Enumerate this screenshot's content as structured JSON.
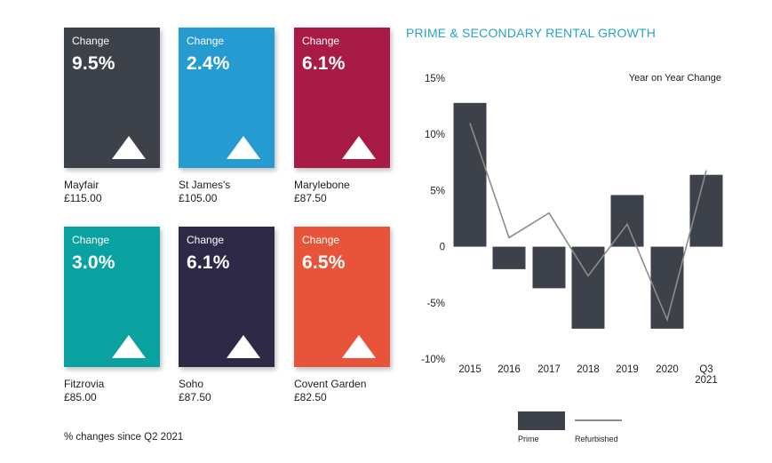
{
  "cards": [
    {
      "label": "Change",
      "value": "9.5%",
      "area": "Mayfair",
      "rent": "£115.00",
      "color": "#3d4149"
    },
    {
      "label": "Change",
      "value": "2.4%",
      "area": "St James's",
      "rent": "£105.00",
      "color": "#269bd2"
    },
    {
      "label": "Change",
      "value": "6.1%",
      "area": "Marylebone",
      "rent": "£87.50",
      "color": "#a81b47"
    },
    {
      "label": "Change",
      "value": "3.0%",
      "area": "Fitzrovia",
      "rent": "£85.00",
      "color": "#0aa1a1"
    },
    {
      "label": "Change",
      "value": "6.1%",
      "area": "Soho",
      "rent": "£87.50",
      "color": "#2d2947"
    },
    {
      "label": "Change",
      "value": "6.5%",
      "area": "Covent Garden",
      "rent": "£82.50",
      "color": "#e8543a"
    }
  ],
  "footnote": "% changes since Q2 2021",
  "chart_data": {
    "type": "bar",
    "title": "PRIME & SECONDARY RENTAL GROWTH",
    "subtitle": "Year on Year Change",
    "categories": [
      "2015",
      "2016",
      "2017",
      "2018",
      "2019",
      "2020",
      "Q3 2021"
    ],
    "series": [
      {
        "name": "Prime",
        "type": "bar",
        "color": "#3d4149",
        "values": [
          12.8,
          -2.0,
          -3.7,
          -7.3,
          4.6,
          -7.3,
          6.4
        ]
      },
      {
        "name": "Refurbished",
        "type": "line",
        "color": "#8c8c8c",
        "values": [
          11.0,
          0.8,
          3.0,
          -2.6,
          2.0,
          -6.5,
          6.8
        ]
      }
    ],
    "yticks": [
      "15%",
      "10%",
      "5%",
      "0",
      "-5%",
      "-10%"
    ],
    "ytick_values": [
      15,
      10,
      5,
      0,
      -5,
      -10
    ],
    "ylim": [
      -10,
      15
    ],
    "xlabel": "",
    "ylabel": "",
    "grid": false,
    "legend": "bottom"
  }
}
